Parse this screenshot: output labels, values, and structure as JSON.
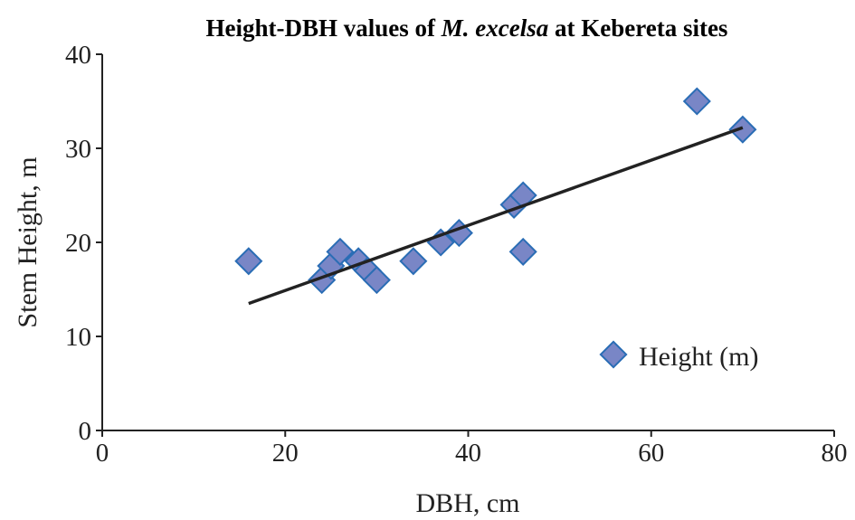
{
  "chart_data": {
    "type": "scatter",
    "title_parts": [
      "Height-DBH values of ",
      "M. excelsa",
      " at Kebereta sites"
    ],
    "xlabel": "DBH, cm",
    "ylabel": "Stem Height, m",
    "xlim": [
      0,
      80
    ],
    "ylim": [
      0,
      40
    ],
    "xticks": [
      0,
      20,
      40,
      60,
      80
    ],
    "yticks": [
      0,
      10,
      20,
      30,
      40
    ],
    "grid": false,
    "legend_position": "bottom-right",
    "series": [
      {
        "name": "Height (m)",
        "color": "#7986c6",
        "edge_color": "#2a6db5",
        "marker": "diamond",
        "points": [
          [
            16,
            18
          ],
          [
            24,
            16
          ],
          [
            25,
            17.5
          ],
          [
            26,
            19
          ],
          [
            28,
            18
          ],
          [
            29,
            17
          ],
          [
            30,
            16
          ],
          [
            34,
            18
          ],
          [
            37,
            20
          ],
          [
            39,
            21
          ],
          [
            45,
            24
          ],
          [
            46,
            25
          ],
          [
            46,
            19
          ],
          [
            65,
            35
          ],
          [
            70,
            32
          ]
        ]
      }
    ],
    "trendline": {
      "type": "linear",
      "color": "#222222",
      "x": [
        16,
        70
      ],
      "y": [
        13.5,
        32.2
      ]
    }
  }
}
